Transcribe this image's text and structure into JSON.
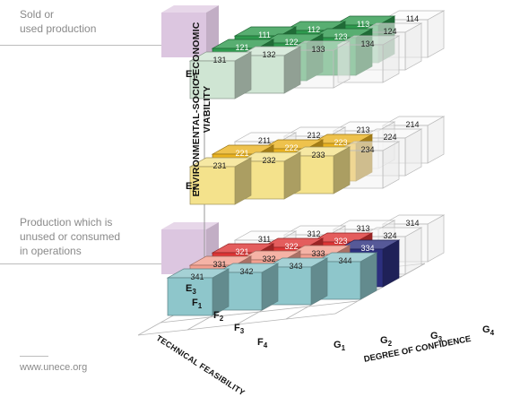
{
  "legend": {
    "top": "Sold or\nused production",
    "bottom": "Production which is\nunused or consumed\nin operations"
  },
  "axes": {
    "environmental": "ENVIRONMENTAL-SOCIO-ECONOMIC\nVIABILITY",
    "technical": "TECHNICAL FEASIBILITY",
    "confidence": "DEGREE OF CONFIDENCE"
  },
  "e_levels": [
    {
      "letter": "E",
      "sub": "1"
    },
    {
      "letter": "E",
      "sub": "2"
    },
    {
      "letter": "E",
      "sub": "3"
    }
  ],
  "f_levels": [
    {
      "letter": "F",
      "sub": "1"
    },
    {
      "letter": "F",
      "sub": "2"
    },
    {
      "letter": "F",
      "sub": "3"
    },
    {
      "letter": "F",
      "sub": "4"
    }
  ],
  "g_levels": [
    {
      "letter": "G",
      "sub": "1"
    },
    {
      "letter": "G",
      "sub": "2"
    },
    {
      "letter": "G",
      "sub": "3"
    },
    {
      "letter": "G",
      "sub": "4"
    }
  ],
  "cells": [
    {
      "code": "111",
      "e": 1,
      "f": 1,
      "g": 1,
      "fill": "green"
    },
    {
      "code": "112",
      "e": 1,
      "f": 1,
      "g": 2,
      "fill": "green"
    },
    {
      "code": "113",
      "e": 1,
      "f": 1,
      "g": 3,
      "fill": "green"
    },
    {
      "code": "114",
      "e": 1,
      "f": 1,
      "g": 4,
      "fill": "empty"
    },
    {
      "code": "121",
      "e": 1,
      "f": 2,
      "g": 1,
      "fill": "green"
    },
    {
      "code": "122",
      "e": 1,
      "f": 2,
      "g": 2,
      "fill": "green"
    },
    {
      "code": "123",
      "e": 1,
      "f": 2,
      "g": 3,
      "fill": "green"
    },
    {
      "code": "124",
      "e": 1,
      "f": 2,
      "g": 4,
      "fill": "empty"
    },
    {
      "code": "131",
      "e": 1,
      "f": 3,
      "g": 1,
      "fill": "lightgreen"
    },
    {
      "code": "132",
      "e": 1,
      "f": 3,
      "g": 2,
      "fill": "lightgreen"
    },
    {
      "code": "133",
      "e": 1,
      "f": 3,
      "g": 3,
      "fill": "empty"
    },
    {
      "code": "134",
      "e": 1,
      "f": 3,
      "g": 4,
      "fill": "empty"
    },
    {
      "code": "211",
      "e": 2,
      "f": 1,
      "g": 1,
      "fill": "empty"
    },
    {
      "code": "212",
      "e": 2,
      "f": 1,
      "g": 2,
      "fill": "empty"
    },
    {
      "code": "213",
      "e": 2,
      "f": 1,
      "g": 3,
      "fill": "empty"
    },
    {
      "code": "214",
      "e": 2,
      "f": 1,
      "g": 4,
      "fill": "empty"
    },
    {
      "code": "221",
      "e": 2,
      "f": 2,
      "g": 1,
      "fill": "amber"
    },
    {
      "code": "222",
      "e": 2,
      "f": 2,
      "g": 2,
      "fill": "amber"
    },
    {
      "code": "223",
      "e": 2,
      "f": 2,
      "g": 3,
      "fill": "amber"
    },
    {
      "code": "224",
      "e": 2,
      "f": 2,
      "g": 4,
      "fill": "empty"
    },
    {
      "code": "231",
      "e": 2,
      "f": 3,
      "g": 1,
      "fill": "lightyellow"
    },
    {
      "code": "232",
      "e": 2,
      "f": 3,
      "g": 2,
      "fill": "lightyellow"
    },
    {
      "code": "233",
      "e": 2,
      "f": 3,
      "g": 3,
      "fill": "lightyellow"
    },
    {
      "code": "234",
      "e": 2,
      "f": 3,
      "g": 4,
      "fill": "empty"
    },
    {
      "code": "311",
      "e": 3,
      "f": 1,
      "g": 1,
      "fill": "empty"
    },
    {
      "code": "312",
      "e": 3,
      "f": 1,
      "g": 2,
      "fill": "empty"
    },
    {
      "code": "313",
      "e": 3,
      "f": 1,
      "g": 3,
      "fill": "empty"
    },
    {
      "code": "314",
      "e": 3,
      "f": 1,
      "g": 4,
      "fill": "empty"
    },
    {
      "code": "321",
      "e": 3,
      "f": 2,
      "g": 1,
      "fill": "red"
    },
    {
      "code": "322",
      "e": 3,
      "f": 2,
      "g": 2,
      "fill": "red"
    },
    {
      "code": "323",
      "e": 3,
      "f": 2,
      "g": 3,
      "fill": "red"
    },
    {
      "code": "324",
      "e": 3,
      "f": 2,
      "g": 4,
      "fill": "empty"
    },
    {
      "code": "331",
      "e": 3,
      "f": 3,
      "g": 1,
      "fill": "lightred"
    },
    {
      "code": "332",
      "e": 3,
      "f": 3,
      "g": 2,
      "fill": "lightred"
    },
    {
      "code": "333",
      "e": 3,
      "f": 3,
      "g": 3,
      "fill": "lightred"
    },
    {
      "code": "334",
      "e": 3,
      "f": 3,
      "g": 4,
      "fill": "navy"
    },
    {
      "code": "341",
      "e": 3,
      "f": 4,
      "g": 1,
      "fill": "teal"
    },
    {
      "code": "342",
      "e": 3,
      "f": 4,
      "g": 2,
      "fill": "teal"
    },
    {
      "code": "343",
      "e": 3,
      "f": 4,
      "g": 3,
      "fill": "teal"
    },
    {
      "code": "344",
      "e": 3,
      "f": 4,
      "g": 4,
      "fill": "teal"
    }
  ],
  "palette": {
    "green": "#2e9a4e",
    "lightgreen": "#cfe5d3",
    "amber": "#eab320",
    "lightyellow": "#f4e28c",
    "red": "#dd3535",
    "lightred": "#f3a090",
    "navy": "#2c2f7e",
    "teal": "#8ec6cb",
    "legend": "#dcc6e0",
    "empty": "#f2f2f2"
  },
  "footer": "www.unece.org"
}
